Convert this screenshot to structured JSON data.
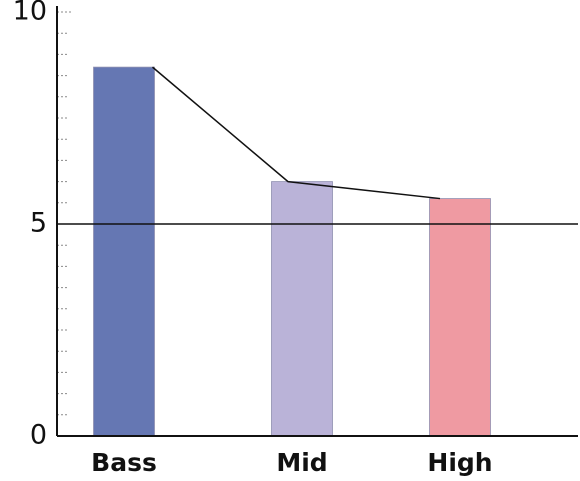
{
  "chart_data": {
    "type": "bar",
    "categories": [
      "Bass",
      "Mid",
      "High"
    ],
    "values": [
      8.7,
      6.0,
      5.6
    ],
    "colors": [
      "#6577b3",
      "#bab3d8",
      "#ef9aa2"
    ],
    "line_overlay": {
      "values": [
        8.7,
        6.0,
        5.6
      ],
      "color": "#111111"
    },
    "reference_line": 5,
    "ylim": [
      0,
      10
    ],
    "yticks": [
      "0",
      "5",
      "10"
    ],
    "ytick_values": [
      0,
      5,
      10
    ],
    "minor_tick_step": 0.5,
    "title": "",
    "xlabel": "",
    "ylabel": "",
    "grid": false
  }
}
